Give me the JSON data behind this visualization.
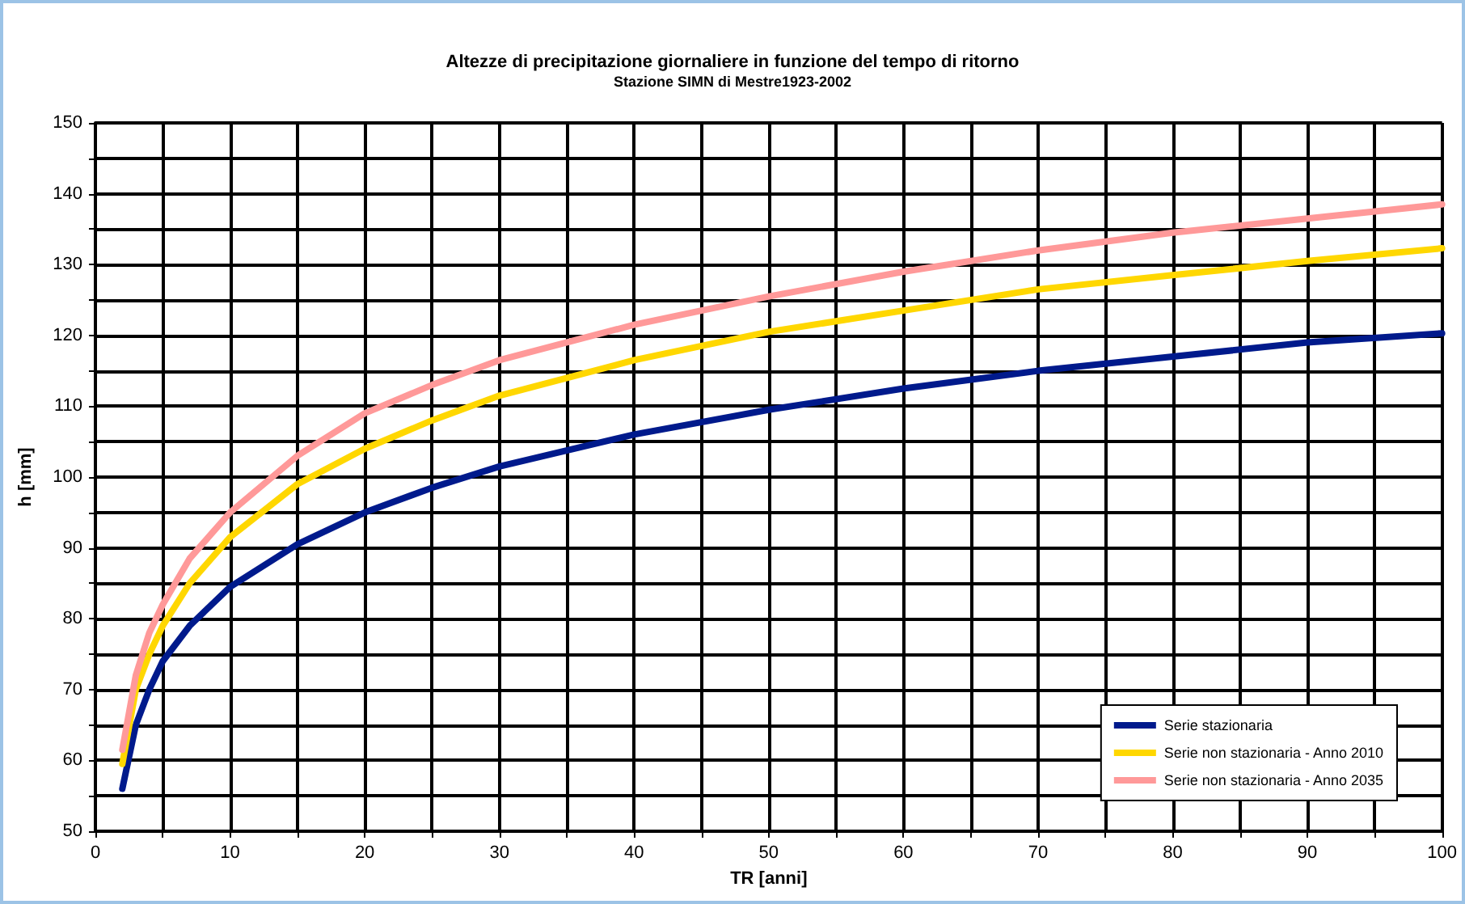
{
  "chart_data": {
    "type": "line",
    "title": "Altezze di precipitazione giornaliere in funzione del tempo di ritorno",
    "subtitle": "Stazione SIMN di Mestre1923-2002",
    "xlabel": "TR [anni]",
    "ylabel": "h [mm]",
    "x": [
      2,
      3,
      4,
      5,
      7,
      10,
      15,
      20,
      25,
      30,
      40,
      50,
      60,
      70,
      80,
      90,
      100
    ],
    "series": [
      {
        "name": "Serie stazionaria",
        "color": "#001a8c",
        "values": [
          56,
          65,
          70,
          74,
          79,
          84.5,
          90.5,
          95,
          98.5,
          101.5,
          106,
          109.5,
          112.5,
          115,
          117,
          119,
          120.3
        ]
      },
      {
        "name": "Serie non stazionaria - Anno 2010",
        "color": "#ffd700",
        "values": [
          59.5,
          70,
          75,
          79,
          85,
          91.5,
          99,
          104,
          108,
          111.5,
          116.5,
          120.5,
          123.5,
          126.5,
          128.5,
          130.5,
          132.3
        ]
      },
      {
        "name": "Serie non stazionaria - Anno 2035",
        "color": "#ff9999",
        "values": [
          61.5,
          72,
          78,
          82,
          88.5,
          95,
          103,
          109,
          113,
          116.5,
          121.5,
          125.5,
          129,
          132,
          134.5,
          136.5,
          138.5
        ]
      }
    ],
    "xlim": [
      0,
      100
    ],
    "xticks": [
      0,
      {
        "value": 5,
        "label": null
      },
      10,
      {
        "value": 15,
        "label": null
      },
      20,
      {
        "value": 25,
        "label": null
      },
      30,
      {
        "value": 35,
        "label": null
      },
      40,
      {
        "value": 45,
        "label": null
      },
      50,
      {
        "value": 55,
        "label": null
      },
      60,
      {
        "value": 65,
        "label": null
      },
      70,
      {
        "value": 75,
        "label": null
      },
      80,
      {
        "value": 85,
        "label": null
      },
      90,
      {
        "value": 95,
        "label": null
      },
      100
    ],
    "ylim": [
      50,
      150
    ],
    "yticks": [
      50,
      {
        "value": 55,
        "label": null
      },
      60,
      {
        "value": 65,
        "label": null
      },
      70,
      {
        "value": 75,
        "label": null
      },
      80,
      {
        "value": 85,
        "label": null
      },
      90,
      {
        "value": 95,
        "label": null
      },
      100,
      {
        "value": 105,
        "label": null
      },
      110,
      {
        "value": 115,
        "label": null
      },
      120,
      {
        "value": 125,
        "label": null
      },
      130,
      {
        "value": 135,
        "label": null
      },
      140,
      {
        "value": 145,
        "label": null
      },
      150
    ],
    "grid": true,
    "legend": "bottom right",
    "marker": "none",
    "line_style": "solid"
  }
}
